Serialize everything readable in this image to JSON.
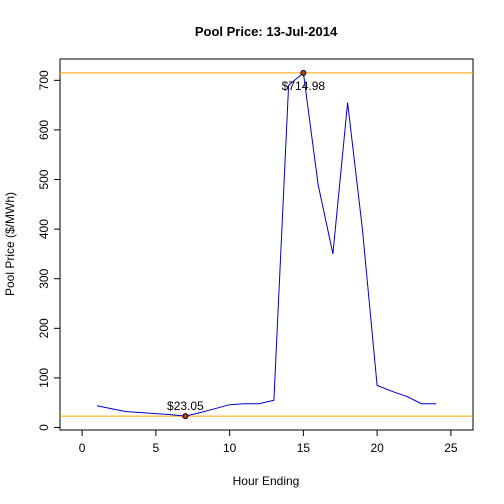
{
  "chart_data": {
    "type": "line",
    "title": "Pool Price: 13-Jul-2014",
    "xlabel": "Hour Ending",
    "ylabel": "Pool Price ($/MWh)",
    "xlim": [
      -1.5,
      26.5
    ],
    "ylim": [
      -5,
      743
    ],
    "x_ticks": [
      0,
      5,
      10,
      15,
      20,
      25
    ],
    "y_ticks": [
      0,
      100,
      200,
      300,
      400,
      500,
      600,
      700
    ],
    "grid": false,
    "series": [
      {
        "x": [
          1,
          2,
          3,
          4,
          5,
          6,
          7,
          8,
          9,
          10,
          11,
          12,
          13,
          14,
          15,
          16,
          17,
          18,
          19,
          20,
          21,
          22,
          23,
          24
        ],
        "values": [
          44,
          38,
          32,
          30,
          28,
          26,
          23.05,
          30,
          38,
          46,
          48,
          48,
          55,
          690,
          714.98,
          490,
          350,
          655,
          400,
          85,
          73,
          63,
          48,
          48
        ],
        "color": "#0000cc"
      }
    ],
    "reference_lines": [
      {
        "y": 714.98,
        "color": "#ffa500"
      },
      {
        "y": 23.05,
        "color": "#ffa500"
      }
    ],
    "annotations": [
      {
        "x": 15,
        "y": 714.98,
        "text": "$714.98"
      },
      {
        "x": 7,
        "y": 23.05,
        "text": "$23.05"
      }
    ]
  }
}
